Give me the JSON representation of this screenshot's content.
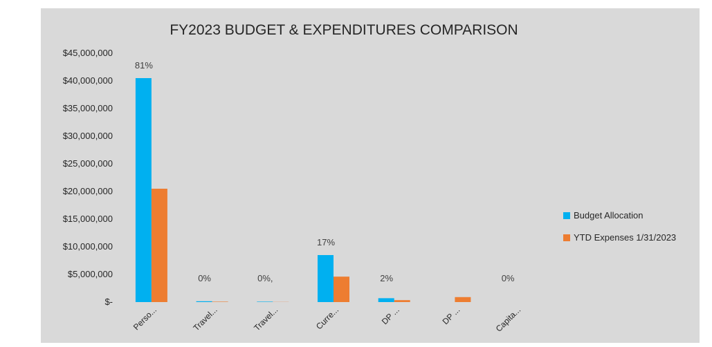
{
  "chart_data": {
    "type": "bar",
    "title": "FY2023 BUDGET & EXPENDITURES COMPARISON",
    "categories": [
      "Perso...",
      "Travel...",
      "Travel...",
      "Curre...",
      "DP ...",
      "DP ...",
      "Capita..."
    ],
    "series": [
      {
        "name": "Budget Allocation",
        "color": "#00b0f0",
        "values": [
          40500000,
          150000,
          80000,
          8500000,
          700000,
          0,
          0
        ]
      },
      {
        "name": "YTD Expenses 1/31/2023",
        "color": "#ed7d31",
        "values": [
          20500000,
          80000,
          30000,
          4600000,
          350000,
          900000,
          0
        ]
      }
    ],
    "data_labels": [
      "81%",
      "0%",
      "0%,",
      "17%",
      "2%",
      "",
      "0%"
    ],
    "ylim": [
      0,
      45000000
    ],
    "yticks": [
      0,
      5000000,
      10000000,
      15000000,
      20000000,
      25000000,
      30000000,
      35000000,
      40000000,
      45000000
    ],
    "ytick_labels": [
      "$-",
      "$5,000,000",
      "$10,000,000",
      "$15,000,000",
      "$20,000,000",
      "$25,000,000",
      "$30,000,000",
      "$35,000,000",
      "$40,000,000",
      "$45,000,000"
    ],
    "grid": false,
    "legend": "right",
    "xlabel": "",
    "ylabel": ""
  }
}
